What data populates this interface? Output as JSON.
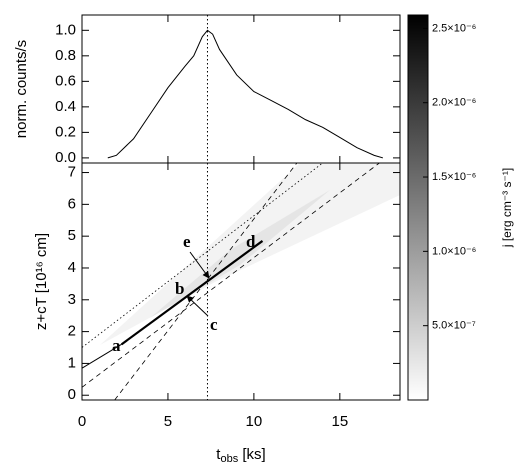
{
  "chart_data": [
    {
      "type": "line",
      "ylabel": "norm. counts/s",
      "xlim": [
        0,
        18.5
      ],
      "xticks": [
        0,
        5,
        10,
        15
      ],
      "ylim": [
        -0.04,
        1.12
      ],
      "yticks": [
        {
          "value": 0,
          "label": "0.0"
        },
        0.2,
        0.4,
        0.6,
        0.8,
        {
          "value": 1,
          "label": "1.0"
        }
      ],
      "vline": 7.3,
      "series": [
        {
          "color": "#000000",
          "style": "solid",
          "x": [
            1.5,
            2,
            3,
            4,
            5,
            6,
            6.5,
            7,
            7.3,
            7.6,
            8,
            9,
            10,
            11,
            12,
            13,
            14,
            15,
            16,
            17,
            17.5
          ],
          "values": [
            0,
            0.02,
            0.15,
            0.35,
            0.55,
            0.72,
            0.8,
            0.95,
            1.0,
            0.97,
            0.85,
            0.65,
            0.52,
            0.45,
            0.38,
            0.3,
            0.24,
            0.16,
            0.08,
            0.02,
            0
          ]
        }
      ]
    },
    {
      "type": "line",
      "ylabel": "z+cT [10¹⁶ cm]",
      "xlabel": {
        "main": "t",
        "sub": "obs",
        "unit": " [ks]"
      },
      "xlim": [
        0,
        18.5
      ],
      "xticks": [
        0,
        5,
        10,
        15
      ],
      "ylim": [
        -0.15,
        7.3
      ],
      "yticks": [
        0,
        1,
        2,
        3,
        4,
        5,
        6,
        7
      ],
      "vline": 7.3,
      "annotations": [
        "a",
        "b",
        "c",
        "d",
        "e"
      ],
      "series": [
        {
          "color": "#000000",
          "style": "solid",
          "width": 1,
          "x": [
            0,
            2.3
          ],
          "values": [
            0.85,
            1.6
          ]
        },
        {
          "color": "#000000",
          "style": "solid",
          "width": 2.2,
          "x": [
            2.3,
            10.5
          ],
          "values": [
            1.6,
            4.85
          ]
        },
        {
          "color": "#000000",
          "style": "dashed",
          "width": 0.8,
          "x": [
            0,
            17.3
          ],
          "values": [
            0.25,
            7.3
          ]
        },
        {
          "color": "#000000",
          "style": "dashed",
          "width": 0.8,
          "x": [
            1.9,
            12.5
          ],
          "values": [
            -0.15,
            7.3
          ]
        },
        {
          "color": "#000000",
          "style": "dotted",
          "width": 0.8,
          "x": [
            0,
            14
          ],
          "values": [
            1.5,
            7.3
          ]
        }
      ],
      "colorbar": {
        "label": "j [erg cm⁻³ s⁻¹]",
        "lim": [
          0,
          2.59e-06
        ],
        "ticks": [
          {
            "value": 5e-07,
            "label": "5.0×10⁻⁷"
          },
          {
            "value": 1e-06,
            "label": "1.0×10⁻⁶"
          },
          {
            "value": 1.5e-06,
            "label": "1.5×10⁻⁶"
          },
          {
            "value": 2e-06,
            "label": "2.0×10⁻⁶"
          },
          {
            "value": 2.5e-06,
            "label": "2.5×10⁻⁶"
          }
        ]
      }
    }
  ]
}
